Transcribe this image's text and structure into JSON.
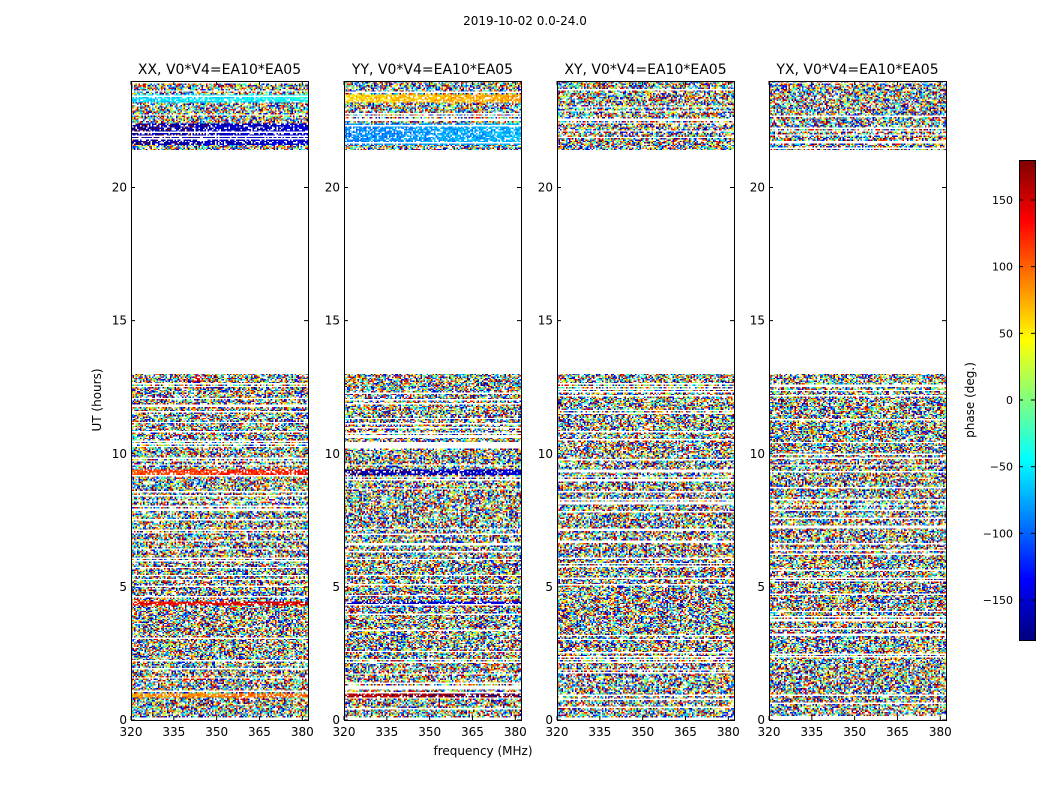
{
  "figure_title": "2019-10-02 0.0-24.0",
  "chart_data": {
    "type": "heatmap",
    "xlabel": "frequency (MHz)",
    "ylabel": "UT (hours)",
    "xlim": [
      320,
      382
    ],
    "ylim": [
      0,
      24
    ],
    "xticks": [
      320,
      335,
      350,
      365,
      380
    ],
    "yticks": [
      0,
      5,
      10,
      15,
      20
    ],
    "colormap": "jet",
    "colorbar": {
      "label": "phase (deg.)",
      "range": [
        -180,
        180
      ],
      "ticks": [
        -150,
        -100,
        -50,
        0,
        50,
        100,
        150
      ]
    },
    "data_present_ut_ranges": [
      [
        0.1,
        13.0
      ],
      [
        21.4,
        24.0
      ]
    ],
    "panels": [
      {
        "title": "XX, V0*V4=EA10*EA05",
        "coherent_bands": [
          {
            "ut": [
              0.85,
              1.0
            ],
            "phase": 80
          },
          {
            "ut": [
              4.3,
              4.45
            ],
            "phase": 130
          },
          {
            "ut": [
              9.2,
              9.4
            ],
            "phase": 110
          },
          {
            "ut": [
              21.6,
              22.4
            ],
            "phase": -170
          },
          {
            "ut": [
              23.2,
              23.5
            ],
            "phase": -60
          }
        ]
      },
      {
        "title": "YY, V0*V4=EA10*EA05",
        "coherent_bands": [
          {
            "ut": [
              0.85,
              1.0
            ],
            "phase": 160
          },
          {
            "ut": [
              4.3,
              4.45
            ],
            "phase": -160
          },
          {
            "ut": [
              9.2,
              9.4
            ],
            "phase": -170
          },
          {
            "ut": [
              21.6,
              22.4
            ],
            "phase": -90
          },
          {
            "ut": [
              23.2,
              23.5
            ],
            "phase": 60
          }
        ]
      },
      {
        "title": "XY, V0*V4=EA10*EA05",
        "coherent_bands": []
      },
      {
        "title": "YX, V0*V4=EA10*EA05",
        "coherent_bands": []
      }
    ]
  }
}
